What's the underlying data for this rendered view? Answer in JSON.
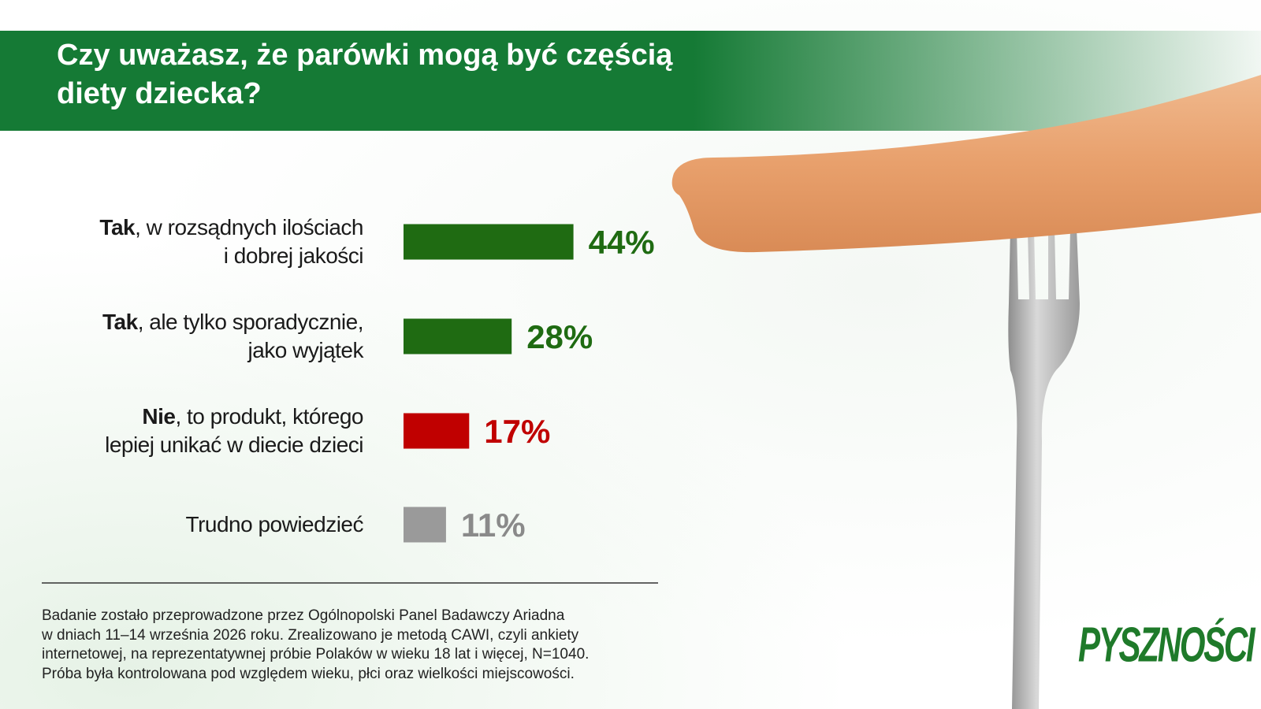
{
  "chart_data": {
    "type": "bar",
    "title": "Czy uważasz, że parówki mogą być częścią\ndiety dziecka?",
    "categories": [
      "Tak, w rozsądnych ilościach\ni dobrej jakości",
      "Tak, ale tylko sporadycznie,\njako wyjątek",
      "Nie, to produkt, którego\nlepiej unikać w diecie dzieci",
      "Trudno powiedzieć"
    ],
    "values": [
      44,
      28,
      17,
      11
    ],
    "value_labels": [
      "44%",
      "28%",
      "17%",
      "11%"
    ],
    "colors": [
      "#1f6b12",
      "#1f6b12",
      "#c00000",
      "#9a9a9a"
    ],
    "label_colors": [
      "#1f6b12",
      "#1f6b12",
      "#c00000",
      "#8a8a8a"
    ],
    "footnote": [
      "Badanie zostało przeprowadzone przez Ogólnopolski Panel Badawczy Ariadna",
      "w dniach 11–14 września 2026 roku. Zrealizowano je metodą CAWI, czyli ankiety",
      "internetowej, na reprezentatywnej próbie Polaków w wieku 18 lat i więcej, N=1040.",
      "Próba była kontrolowana pod względem wieku, płci oraz wielkości miejscowości."
    ],
    "logo": "PYSZNOŚCI"
  }
}
